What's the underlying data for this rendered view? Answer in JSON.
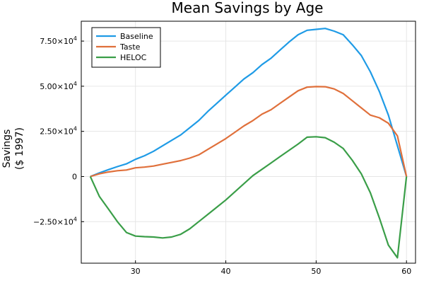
{
  "chart_data": {
    "type": "line",
    "title": "Mean Savings by Age",
    "xlabel": "",
    "ylabel": [
      "Savings",
      "($ 1997)"
    ],
    "xlim": [
      24,
      61
    ],
    "ylim": [
      -48000,
      86000
    ],
    "grid": true,
    "legend_position": "top-left",
    "x_ticks": [
      {
        "value": 30,
        "label": "30"
      },
      {
        "value": 40,
        "label": "40"
      },
      {
        "value": 50,
        "label": "50"
      },
      {
        "value": 60,
        "label": "60"
      }
    ],
    "y_ticks": [
      {
        "value": -25000,
        "label": "−2.50×10",
        "exp": "4"
      },
      {
        "value": 0,
        "label": "0",
        "exp": ""
      },
      {
        "value": 25000,
        "label": "2.50×10",
        "exp": "4"
      },
      {
        "value": 50000,
        "label": "5.00×10",
        "exp": "4"
      },
      {
        "value": 75000,
        "label": "7.50×10",
        "exp": "4"
      }
    ],
    "x": [
      25,
      26,
      27,
      28,
      29,
      30,
      31,
      32,
      33,
      34,
      35,
      36,
      37,
      38,
      39,
      40,
      41,
      42,
      43,
      44,
      45,
      46,
      47,
      48,
      49,
      50,
      51,
      52,
      53,
      54,
      55,
      56,
      57,
      58,
      59,
      60
    ],
    "series": [
      {
        "name": "Baseline",
        "color": "#1f9be6",
        "values": [
          0,
          2000,
          3800,
          5500,
          7000,
          9500,
          11500,
          14000,
          17000,
          20000,
          23000,
          27000,
          31000,
          36000,
          40500,
          45000,
          49500,
          54000,
          57500,
          62000,
          65500,
          70000,
          74500,
          78500,
          81000,
          81500,
          82000,
          80500,
          78500,
          73000,
          67000,
          58000,
          47000,
          34000,
          17000,
          0
        ]
      },
      {
        "name": "Taste",
        "color": "#e0703b",
        "values": [
          0,
          1500,
          2500,
          3200,
          3600,
          4800,
          5200,
          5800,
          6800,
          7800,
          8800,
          10200,
          12000,
          15000,
          18000,
          21000,
          24500,
          28000,
          31000,
          34500,
          37000,
          40500,
          44000,
          47500,
          49500,
          49800,
          49700,
          48500,
          46000,
          42000,
          38000,
          34000,
          32500,
          29500,
          22500,
          0
        ]
      },
      {
        "name": "HELOC",
        "color": "#3a9e48",
        "values": [
          0,
          -11000,
          -18000,
          -25000,
          -31000,
          -33000,
          -33300,
          -33500,
          -34000,
          -33500,
          -32000,
          -29000,
          -25000,
          -21000,
          -17000,
          -13000,
          -8500,
          -4000,
          500,
          4000,
          7500,
          11000,
          14500,
          18000,
          21800,
          22000,
          21500,
          19000,
          15500,
          9000,
          1500,
          -9000,
          -23000,
          -38000,
          -45000,
          0
        ]
      }
    ]
  }
}
